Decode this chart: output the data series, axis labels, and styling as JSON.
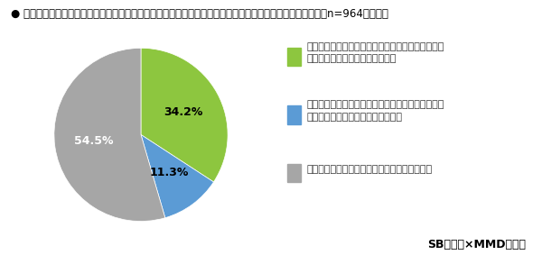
{
  "title": "● 企業からのデジタルギフトを店舗で受け取る際､その店舗でデジタルギフトとは別の商品を購入した経験（n=964、単数）",
  "slices": [
    34.2,
    11.3,
    54.5
  ],
  "colors": [
    "#8dc63f",
    "#5b9bd5",
    "#a6a6a6"
  ],
  "labels_on_pie": [
    "34.2%",
    "11.3%",
    "54.5%"
  ],
  "legend_labels": [
    "デジタルギフトを店舗で受け取ったことはあるが、\n合わせて商品を購入したこがある",
    "デジタルギフトを店舗で受け取ったことはあるが、\n合わせて商品を購入したことはない",
    "デジタルギフトを店舗で受け取ったことがない"
  ],
  "footnote": "SBギフト×MMD研究所",
  "background_color": "#ffffff",
  "start_angle": 90,
  "title_fontsize": 8.5,
  "legend_fontsize": 8.0,
  "footnote_fontsize": 9.0
}
